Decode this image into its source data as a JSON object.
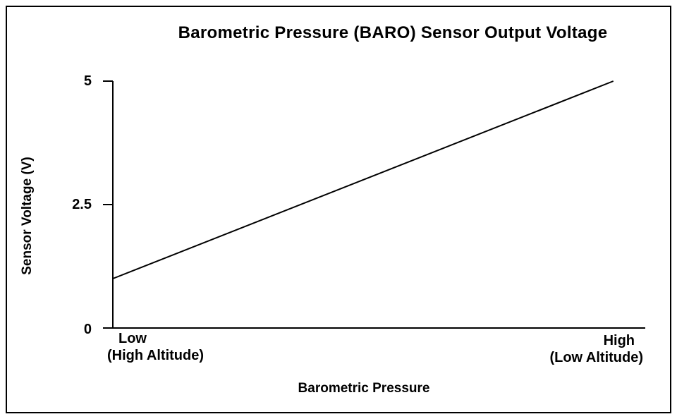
{
  "chart": {
    "title": "Barometric Pressure (BARO) Sensor Output Voltage",
    "ylabel": "Sensor Voltage (V)",
    "xlabel": "Barometric Pressure",
    "ytick_labels": [
      "5",
      "2.5",
      "0"
    ],
    "x_left_label": "Low",
    "x_left_sublabel": "(High Altitude)",
    "x_right_label": "High",
    "x_right_sublabel": "(Low Altitude)"
  },
  "chart_data": {
    "type": "line",
    "title": "Barometric Pressure (BARO) Sensor Output Voltage",
    "xlabel": "Barometric Pressure",
    "ylabel": "Sensor Voltage (V)",
    "x_axis_labels": [
      "Low (High Altitude)",
      "High (Low Altitude)"
    ],
    "x_note": "x values are fractions of the pressure axis; no numeric pressure scale is shown",
    "series": [
      {
        "name": "baro-sensor-output",
        "x": [
          0,
          0.94
        ],
        "values": [
          1.0,
          5.0
        ]
      }
    ],
    "ylim": [
      0,
      5
    ],
    "yticks": [
      0,
      2.5,
      5
    ],
    "grid": false,
    "legend": false,
    "line_color": "#000000",
    "background_color": "#ffffff"
  }
}
